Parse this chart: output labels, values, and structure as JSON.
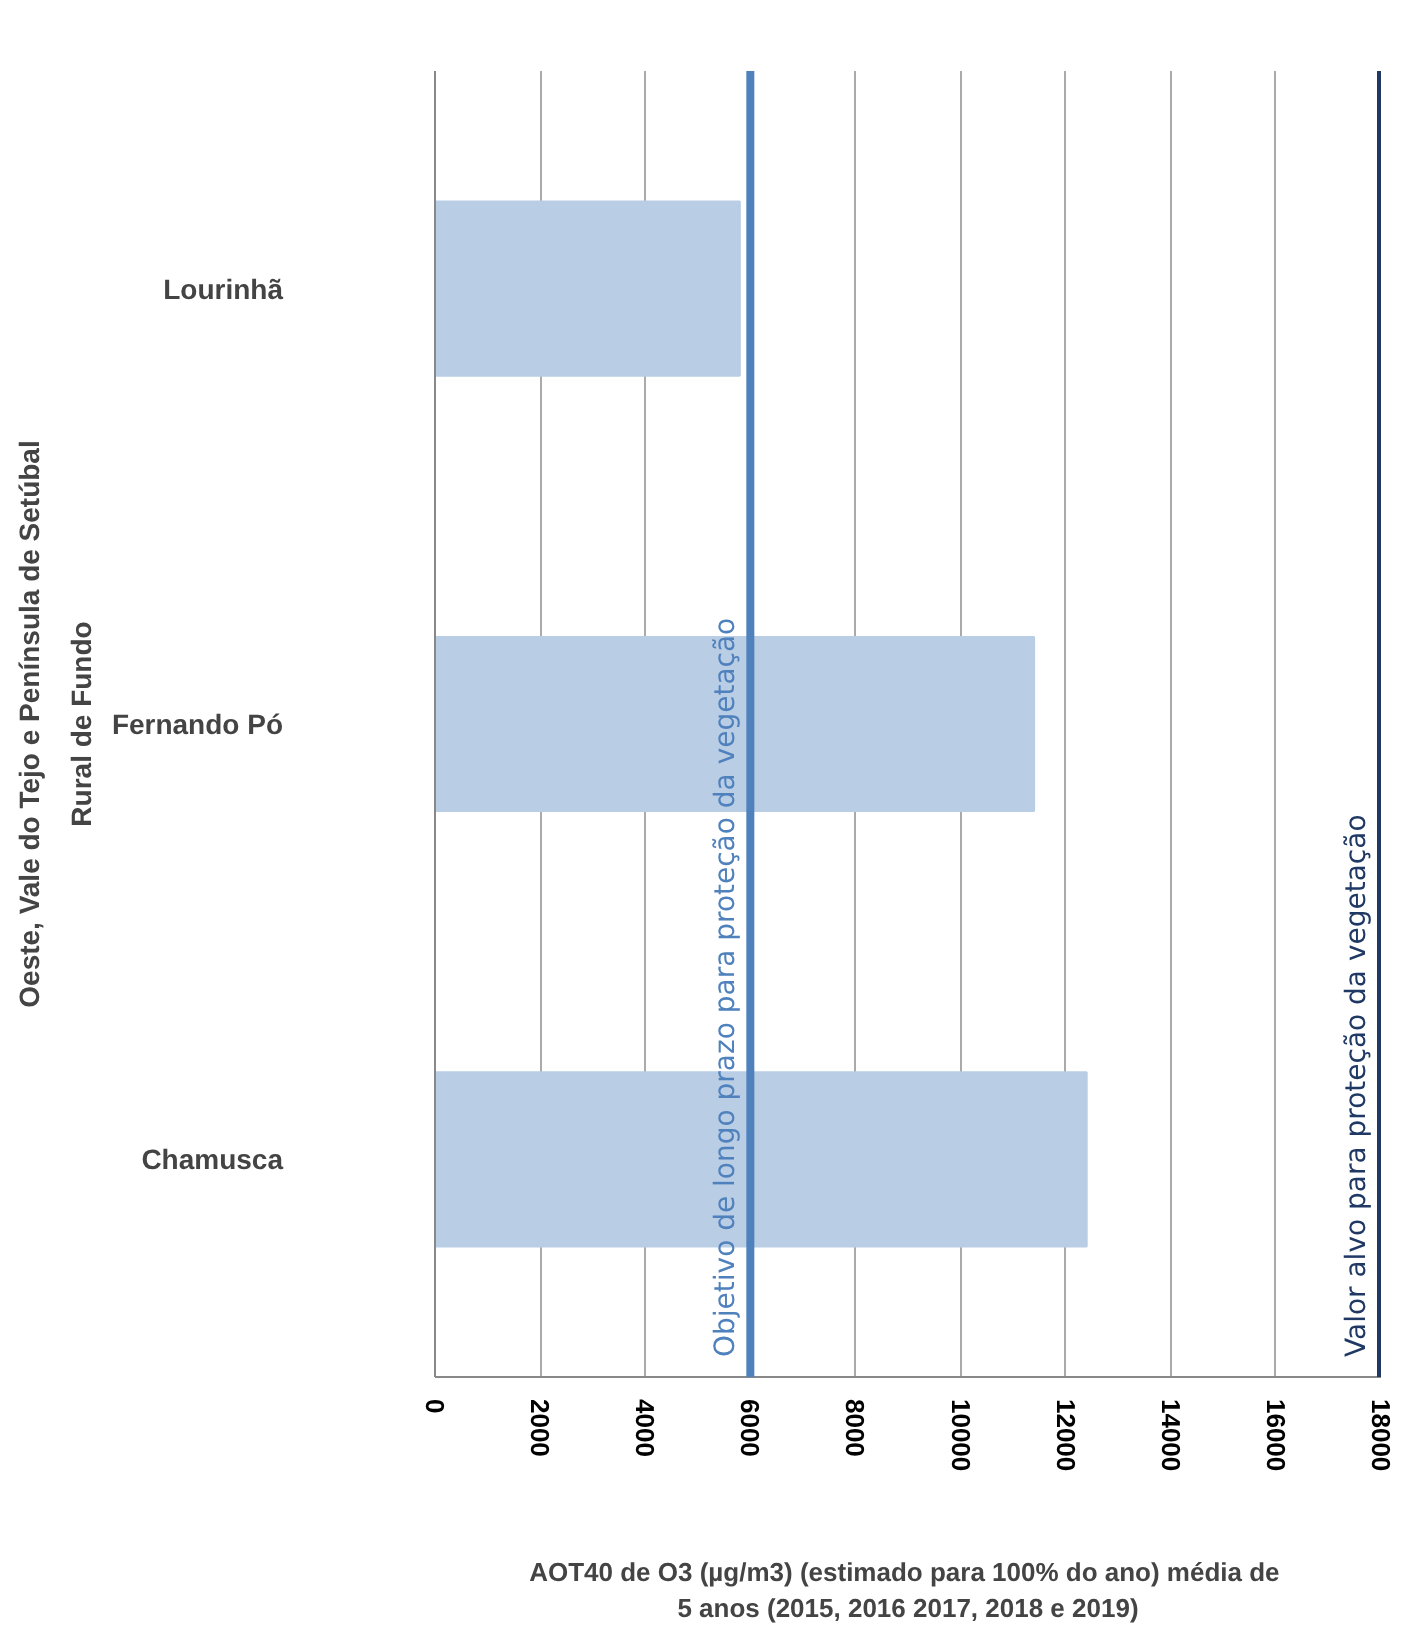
{
  "chart_data": {
    "type": "bar",
    "orientation": "horizontal",
    "categories": [
      "Lourinhã",
      "Fernando Pó",
      "Chamusca"
    ],
    "values": [
      5800,
      11400,
      12400
    ],
    "color": "#b9cde5",
    "xlim": [
      0,
      18000
    ],
    "xticks": [
      0,
      2000,
      4000,
      6000,
      8000,
      10000,
      12000,
      14000,
      16000,
      18000
    ],
    "xlabel": "AOT40 de O3  (µg/m3) (estimado para 100% do ano) média de\n5 anos (2015, 2016 2017, 2018 e 2019)",
    "grid": "x",
    "ref_lines": [
      {
        "axis": "x",
        "value": 6000,
        "label": "Objetivo de longo prazo para proteção da vegetação",
        "color": "#4f81bd"
      },
      {
        "axis": "x",
        "value": 18000,
        "label": "Valor alvo para proteção da vegetação",
        "color": "#1f3864"
      }
    ],
    "annotations": [
      "Oeste, Vale do Tejo e Península de Setúbal",
      "Rural de Fundo"
    ]
  }
}
